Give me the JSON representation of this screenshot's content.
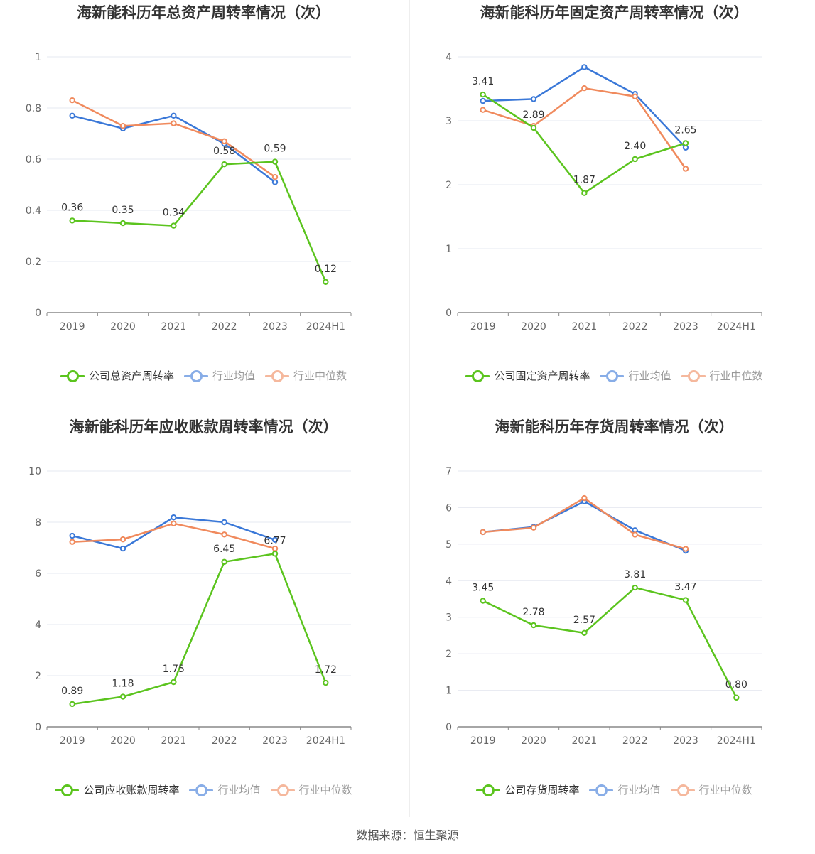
{
  "source_text": "数据来源：恒生聚源",
  "colors": {
    "company": "#5bc41e",
    "avg": "#3a78d8",
    "median": "#f08a5d",
    "grid": "#e6e8f0",
    "axis": "#888888"
  },
  "chart_data": [
    {
      "type": "line",
      "title": "海新能科历年总资产周转率情况（次）",
      "categories": [
        "2019",
        "2020",
        "2021",
        "2022",
        "2023",
        "2024H1"
      ],
      "ylim": [
        0,
        1
      ],
      "yticks": [
        "0",
        "0.2",
        "0.4",
        "0.6",
        "0.8",
        "1"
      ],
      "series": [
        {
          "name": "公司总资产周转率",
          "key": "company",
          "values": [
            0.36,
            0.35,
            0.34,
            0.58,
            0.59,
            0.12
          ],
          "labels": [
            "0.36",
            "0.35",
            "0.34",
            "0.58",
            "0.59",
            "0.12"
          ]
        },
        {
          "name": "行业均值",
          "key": "avg",
          "values": [
            0.77,
            0.72,
            0.77,
            0.66,
            0.51,
            null
          ]
        },
        {
          "name": "行业中位数",
          "key": "median",
          "values": [
            0.83,
            0.73,
            0.74,
            0.67,
            0.53,
            null
          ]
        }
      ]
    },
    {
      "type": "line",
      "title": "海新能科历年固定资产周转率情况（次）",
      "categories": [
        "2019",
        "2020",
        "2021",
        "2022",
        "2023",
        "2024H1"
      ],
      "ylim": [
        0,
        4
      ],
      "yticks": [
        "0",
        "1",
        "2",
        "3",
        "4"
      ],
      "series": [
        {
          "name": "公司固定资产周转率",
          "key": "company",
          "values": [
            3.41,
            2.89,
            1.87,
            2.4,
            2.65,
            null
          ],
          "labels": [
            "3.41",
            "2.89",
            "1.87",
            "2.40",
            "2.65",
            ""
          ]
        },
        {
          "name": "行业均值",
          "key": "avg",
          "values": [
            3.31,
            3.34,
            3.84,
            3.42,
            2.58,
            null
          ]
        },
        {
          "name": "行业中位数",
          "key": "median",
          "values": [
            3.17,
            2.92,
            3.51,
            3.38,
            2.25,
            null
          ]
        }
      ]
    },
    {
      "type": "line",
      "title": "海新能科历年应收账款周转率情况（次）",
      "categories": [
        "2019",
        "2020",
        "2021",
        "2022",
        "2023",
        "2024H1"
      ],
      "ylim": [
        0,
        10
      ],
      "yticks": [
        "0",
        "2",
        "4",
        "6",
        "8",
        "10"
      ],
      "series": [
        {
          "name": "公司应收账款周转率",
          "key": "company",
          "values": [
            0.89,
            1.18,
            1.75,
            6.45,
            6.77,
            1.72
          ],
          "labels": [
            "0.89",
            "1.18",
            "1.75",
            "6.45",
            "6.77",
            "1.72"
          ]
        },
        {
          "name": "行业均值",
          "key": "avg",
          "values": [
            7.47,
            6.97,
            8.19,
            8.0,
            7.31,
            null
          ]
        },
        {
          "name": "行业中位数",
          "key": "median",
          "values": [
            7.23,
            7.33,
            7.95,
            7.52,
            6.97,
            null
          ]
        }
      ]
    },
    {
      "type": "line",
      "title": "海新能科历年存货周转率情况（次）",
      "categories": [
        "2019",
        "2020",
        "2021",
        "2022",
        "2023",
        "2024H1"
      ],
      "ylim": [
        0,
        7
      ],
      "yticks": [
        "0",
        "1",
        "2",
        "3",
        "4",
        "5",
        "6",
        "7"
      ],
      "series": [
        {
          "name": "公司存货周转率",
          "key": "company",
          "values": [
            3.45,
            2.78,
            2.57,
            3.81,
            3.47,
            0.8
          ],
          "labels": [
            "3.45",
            "2.78",
            "2.57",
            "3.81",
            "3.47",
            "0.80"
          ]
        },
        {
          "name": "行业均值",
          "key": "avg",
          "values": [
            5.33,
            5.47,
            6.17,
            5.38,
            4.82,
            null
          ]
        },
        {
          "name": "行业中位数",
          "key": "median",
          "values": [
            5.33,
            5.45,
            6.26,
            5.26,
            4.87,
            null
          ]
        }
      ]
    }
  ]
}
